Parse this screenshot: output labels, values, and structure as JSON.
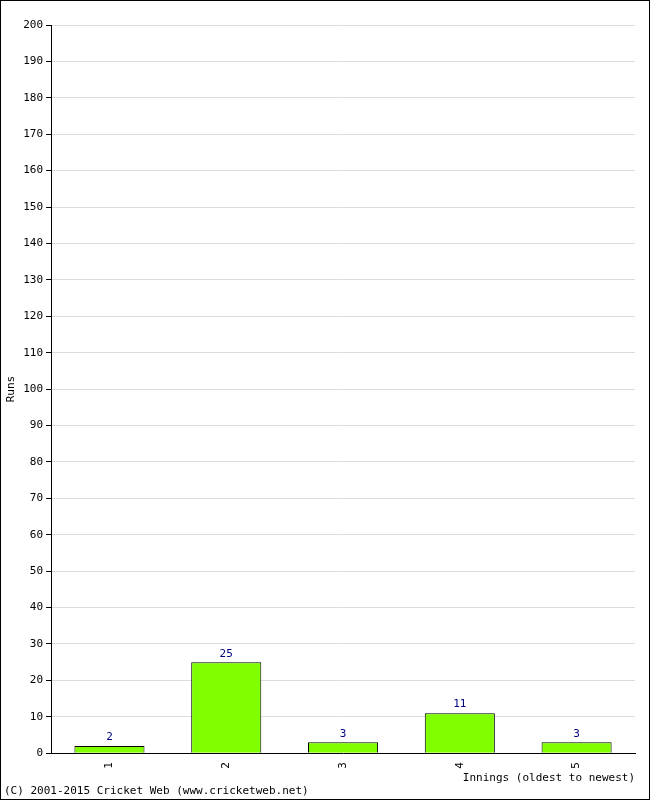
{
  "chart_data": {
    "type": "bar",
    "x_label": "Innings (oldest to newest)",
    "y_label": "Runs",
    "annotations": [
      "(C) 2001-2015 Cricket Web (www.cricketweb.net)"
    ],
    "categories": [
      "1",
      "2",
      "3",
      "4",
      "5"
    ],
    "values": [
      2,
      25,
      3,
      11,
      3
    ],
    "color": "#80ff00",
    "ylim": [
      0,
      200
    ],
    "yticks": [
      0,
      10,
      20,
      30,
      40,
      50,
      60,
      70,
      80,
      90,
      100,
      110,
      120,
      130,
      140,
      150,
      160,
      170,
      180,
      190,
      200
    ],
    "grid": true,
    "data_labels": true
  }
}
